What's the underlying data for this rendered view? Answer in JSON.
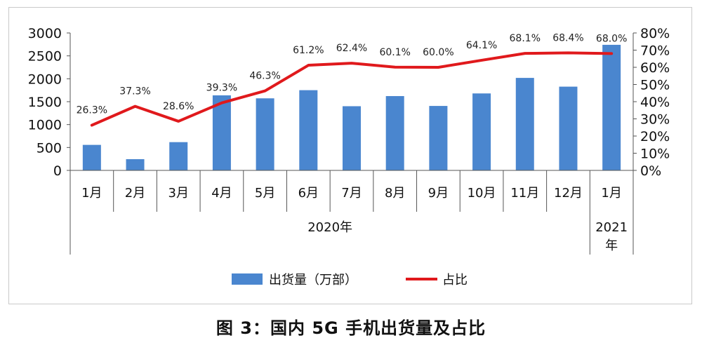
{
  "caption": "图 3：国内 5G 手机出货量及占比",
  "chart_data": {
    "type": "bar+line",
    "categories": [
      "1月",
      "2月",
      "3月",
      "4月",
      "5月",
      "6月",
      "7月",
      "8月",
      "9月",
      "10月",
      "11月",
      "12月",
      "1月"
    ],
    "year_groups": [
      {
        "label": "2020年",
        "from": 0,
        "to": 11
      },
      {
        "label": "2021年",
        "from": 12,
        "to": 12
      }
    ],
    "series": [
      {
        "name": "出货量（万部）",
        "kind": "bar",
        "axis": "left",
        "color": "#4a86cf",
        "values": [
          557,
          245,
          617,
          1638,
          1573,
          1751,
          1401,
          1622,
          1407,
          1680,
          2019,
          1828,
          2741
        ]
      },
      {
        "name": "占比",
        "kind": "line",
        "axis": "right",
        "color": "#e0191c",
        "values": [
          26.3,
          37.3,
          28.6,
          39.3,
          46.3,
          61.2,
          62.4,
          60.1,
          60.0,
          64.1,
          68.1,
          68.4,
          68.0
        ],
        "labels": [
          "26.3%",
          "37.3%",
          "28.6%",
          "39.3%",
          "46.3%",
          "61.2%",
          "62.4%",
          "60.1%",
          "60.0%",
          "64.1%",
          "68.1%",
          "68.4%",
          "68.0%"
        ]
      }
    ],
    "y_left": {
      "min": 0,
      "max": 3000,
      "ticks": [
        0,
        500,
        1000,
        1500,
        2000,
        2500,
        3000
      ]
    },
    "y_right": {
      "min": 0,
      "max": 80,
      "ticks": [
        0,
        10,
        20,
        30,
        40,
        50,
        60,
        70,
        80
      ],
      "tick_labels": [
        "0%",
        "10%",
        "20%",
        "30%",
        "40%",
        "50%",
        "60%",
        "70%",
        "80%"
      ]
    },
    "legend_position": "bottom-center",
    "grid": false
  }
}
